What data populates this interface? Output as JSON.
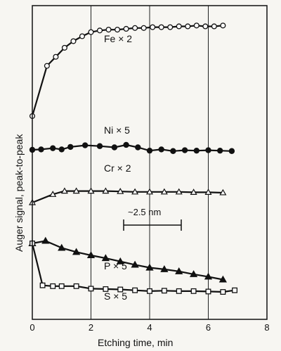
{
  "chart_data": {
    "type": "line",
    "xlabel": "Etching time, min",
    "ylabel": "Auger signal, peak-to-peak",
    "xlim": [
      0,
      8
    ],
    "x_ticks": [
      "0",
      "2",
      "4",
      "6",
      "8"
    ],
    "grid": "vertical",
    "annotation": "~2.5 nm",
    "series": [
      {
        "name": "Fe × 2",
        "marker": "circle-open",
        "x": [
          0,
          0.5,
          0.8,
          1.1,
          1.4,
          1.7,
          2.0,
          2.3,
          2.6,
          2.9,
          3.2,
          3.5,
          3.8,
          4.1,
          4.4,
          4.7,
          5.0,
          5.3,
          5.6,
          5.9,
          6.2,
          6.5
        ],
        "y": [
          0,
          6.1,
          7.2,
          8.3,
          9.1,
          9.7,
          10.2,
          10.4,
          10.5,
          10.5,
          10.6,
          10.7,
          10.7,
          10.8,
          10.8,
          10.8,
          10.9,
          10.9,
          11.0,
          10.9,
          10.9,
          11.0
        ]
      },
      {
        "name": "Ni × 5",
        "marker": "circle-filled",
        "x": [
          0,
          0.3,
          0.7,
          1.0,
          1.3,
          1.8,
          2.3,
          2.8,
          3.2,
          3.6,
          4.0,
          4.4,
          4.8,
          5.2,
          5.6,
          6.0,
          6.4,
          6.8
        ],
        "y": [
          0,
          0.05,
          0.2,
          0.05,
          0.35,
          0.55,
          0.45,
          0.3,
          0.6,
          0.3,
          -0.1,
          0.05,
          -0.15,
          -0.05,
          -0.1,
          -0.05,
          -0.1,
          -0.15
        ]
      },
      {
        "name": "Cr × 2",
        "marker": "triangle-open",
        "x": [
          0,
          0.7,
          1.1,
          1.5,
          2.0,
          2.5,
          3.0,
          3.5,
          4.0,
          4.5,
          5.0,
          5.5,
          6.0,
          6.5
        ],
        "y": [
          0,
          1.0,
          1.4,
          1.4,
          1.4,
          1.4,
          1.35,
          1.3,
          1.3,
          1.3,
          1.3,
          1.25,
          1.25,
          1.2
        ]
      },
      {
        "name": "P × 5",
        "marker": "triangle-filled",
        "x": [
          0,
          0.45,
          1.0,
          1.5,
          2.0,
          2.5,
          3.0,
          3.5,
          4.0,
          4.5,
          5.0,
          5.5,
          6.0,
          6.5
        ],
        "y": [
          0,
          0.3,
          -0.55,
          -1.05,
          -1.45,
          -1.8,
          -2.2,
          -2.6,
          -2.95,
          -3.15,
          -3.4,
          -3.75,
          -4.05,
          -4.4
        ]
      },
      {
        "name": "S × 5",
        "marker": "square-open",
        "x": [
          0,
          0.35,
          0.7,
          1.0,
          1.5,
          2.0,
          2.5,
          3.0,
          3.5,
          4.0,
          4.5,
          5.0,
          5.5,
          6.0,
          6.5,
          6.9
        ],
        "y": [
          0,
          -5.1,
          -5.2,
          -5.2,
          -5.2,
          -5.5,
          -5.55,
          -5.6,
          -5.7,
          -5.8,
          -5.75,
          -5.8,
          -5.8,
          -5.85,
          -5.9,
          -5.7
        ]
      }
    ]
  }
}
